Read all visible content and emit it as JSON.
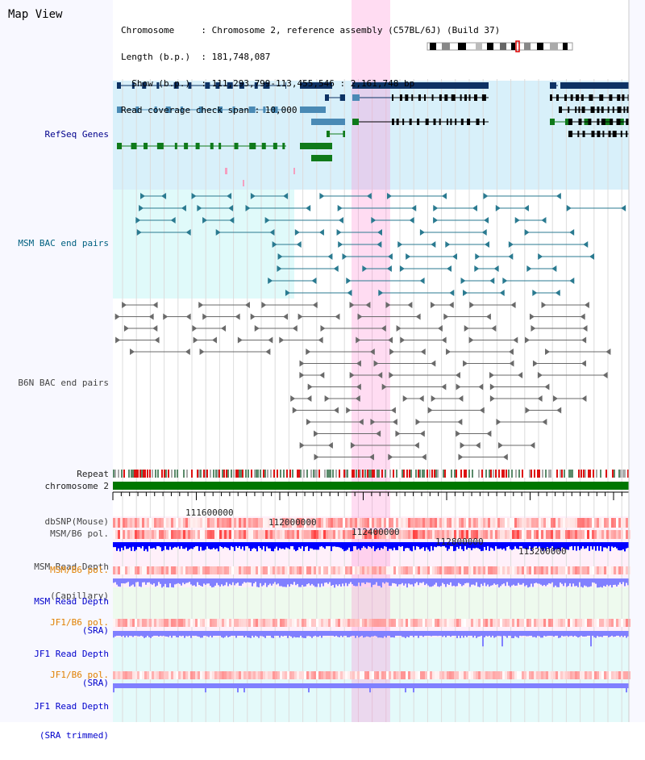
{
  "view": {
    "title": "Map View",
    "info_lines": [
      "Chromosome     : Chromosome 2, reference assembly (C57BL/6J) (Build 37)",
      "Length (b.p.)  : 181,748,087",
      "  Show (b.p.)  : 111,293,799-113,455,546 : 2,161,748 bp",
      "Read coverage check span : 10,000"
    ]
  },
  "tracks": {
    "refseq": "RefSeq Genes",
    "msm_bac": "MSM BAC end pairs",
    "b6n_bac": "B6N BAC end pairs",
    "repeat": "Repeat",
    "chromosome": "chromosome 2",
    "dbsnp": "dbSNP(Mouse)",
    "msm_b6_pol": "MSM/B6 pol.",
    "msm_depth_cap_1": "MSM Read Depth",
    "msm_depth_cap_2": "(Capillary)",
    "msm_b6_pol2": "MSM/B6 pol.",
    "msm_depth_sra_1": "MSM Read Depth",
    "msm_depth_sra_2": "(SRA)",
    "jf1_pol": "JF1/B6 pol.",
    "jf1_depth_1": "JF1 Read Depth",
    "jf1_depth_2": "(SRA)",
    "jf1_pol2": "JF1/B6 pol.",
    "jf1_trim_1": "JF1 Read Depth",
    "jf1_trim_2": "(SRA trimmed)"
  },
  "ruler": {
    "ticks": [
      "111600000",
      "112000000",
      "112400000",
      "112800000",
      "113200000"
    ]
  },
  "colors": {
    "navy": "#00008b",
    "refseq_bg": "#d8f0fa",
    "bac_bg": "#e0fafa",
    "highlight": "#ff80d0",
    "chromosome": "#007700",
    "gene_dark": "#0d3264",
    "gene_mid": "#4a8ab5",
    "gene_green": "#0f7a1a",
    "depth_blue": "#0000ff",
    "depth_light": "#8080ff"
  }
}
